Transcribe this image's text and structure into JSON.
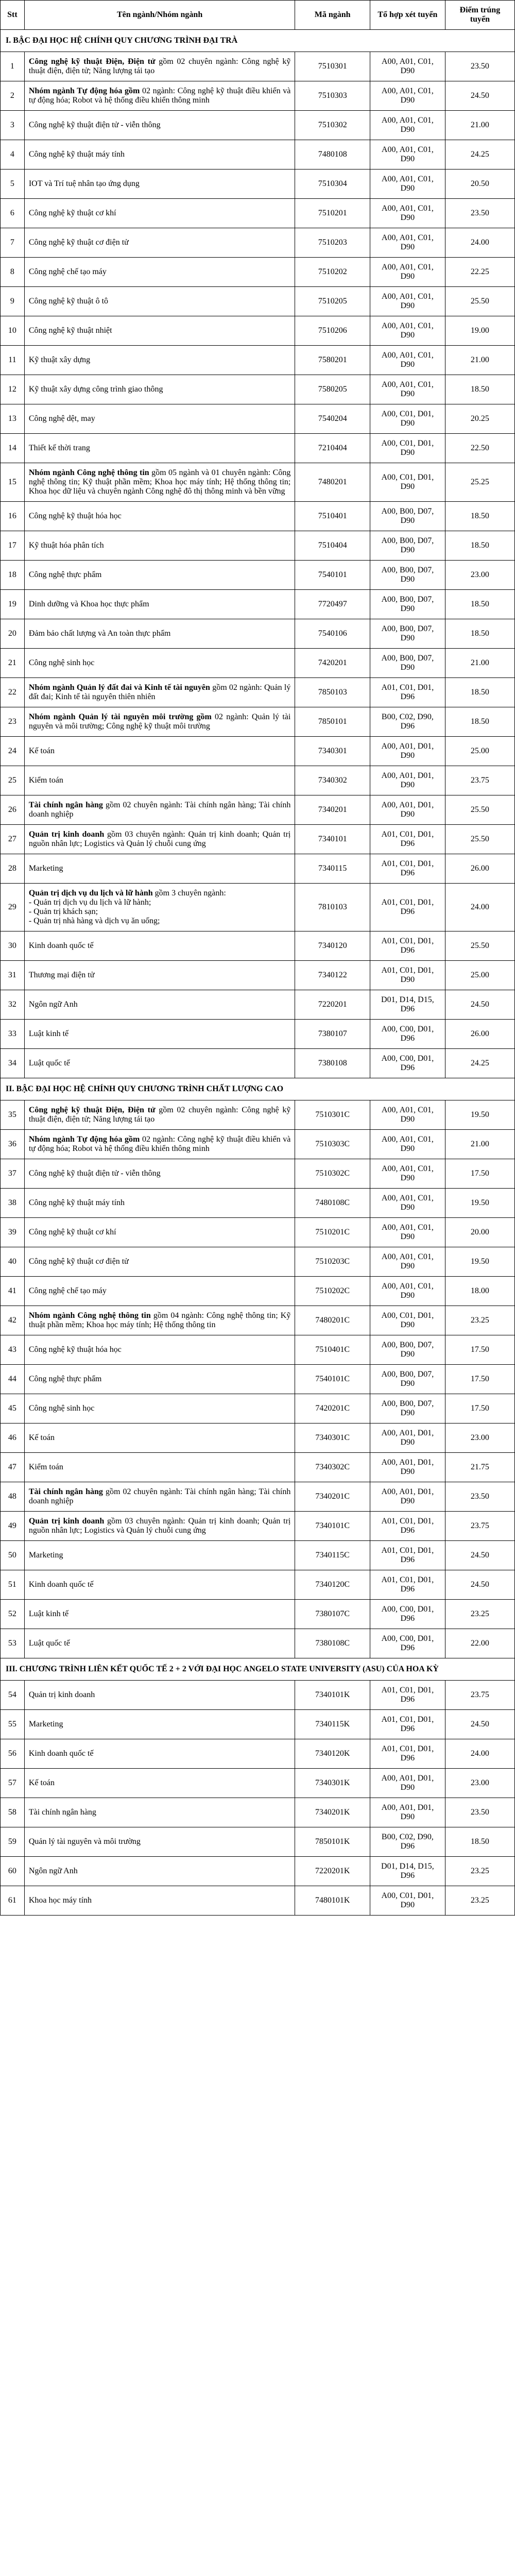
{
  "headers": {
    "stt": "Stt",
    "name": "Tên ngành/Nhóm ngành",
    "ma": "Mã ngành",
    "tohop": "Tổ hợp xét tuyển",
    "diem": "Điểm trúng tuyển"
  },
  "sections": [
    {
      "title": "I. BẬC ĐẠI HỌC HỆ CHÍNH QUY CHƯƠNG TRÌNH ĐẠI TRÀ"
    },
    {
      "title": "II. BẬC ĐẠI HỌC HỆ CHÍNH QUY CHƯƠNG TRÌNH CHẤT LƯỢNG CAO"
    },
    {
      "title": "III. CHƯƠNG TRÌNH LIÊN KẾT QUỐC TẾ 2 + 2 VỚI ĐẠI HỌC ANGELO STATE UNIVERSITY (ASU) CỦA HOA KỲ"
    }
  ],
  "rows1": [
    {
      "stt": "1",
      "bold": "Công nghệ kỹ thuật Điện, Điện tử",
      "plain": " gồm 02 chuyên ngành: Công nghệ kỹ thuật điện, điện tử; Năng lượng tái tạo",
      "ma": "7510301",
      "tohop": "A00, A01, C01, D90",
      "diem": "23.50"
    },
    {
      "stt": "2",
      "bold": "Nhóm ngành Tự động hóa gồm",
      "plain": " 02 ngành: Công nghệ kỹ thuật điều khiển và tự động hóa; Robot và hệ thống điều khiển thông minh",
      "ma": "7510303",
      "tohop": "A00, A01, C01, D90",
      "diem": "24.50"
    },
    {
      "stt": "3",
      "bold": "",
      "plain": "Công nghệ kỹ thuật điện tử - viễn thông",
      "ma": "7510302",
      "tohop": "A00, A01, C01, D90",
      "diem": "21.00"
    },
    {
      "stt": "4",
      "bold": "",
      "plain": "Công nghệ kỹ thuật máy tính",
      "ma": "7480108",
      "tohop": "A00, A01, C01, D90",
      "diem": "24.25"
    },
    {
      "stt": "5",
      "bold": "",
      "plain": "IOT và Trí tuệ nhân tạo ứng dụng",
      "ma": "7510304",
      "tohop": "A00, A01, C01, D90",
      "diem": "20.50"
    },
    {
      "stt": "6",
      "bold": "",
      "plain": "Công nghệ kỹ thuật cơ khí",
      "ma": "7510201",
      "tohop": "A00, A01, C01, D90",
      "diem": "23.50"
    },
    {
      "stt": "7",
      "bold": "",
      "plain": "Công nghệ kỹ thuật cơ điện tử",
      "ma": "7510203",
      "tohop": "A00, A01, C01, D90",
      "diem": "24.00"
    },
    {
      "stt": "8",
      "bold": "",
      "plain": "Công nghệ chế tạo máy",
      "ma": "7510202",
      "tohop": "A00, A01, C01, D90",
      "diem": "22.25"
    },
    {
      "stt": "9",
      "bold": "",
      "plain": "Công nghệ kỹ thuật ô tô",
      "ma": "7510205",
      "tohop": "A00, A01, C01, D90",
      "diem": "25.50"
    },
    {
      "stt": "10",
      "bold": "",
      "plain": "Công nghệ kỹ thuật nhiệt",
      "ma": "7510206",
      "tohop": "A00, A01, C01, D90",
      "diem": "19.00"
    },
    {
      "stt": "11",
      "bold": "",
      "plain": "Kỹ thuật xây dựng",
      "ma": "7580201",
      "tohop": "A00, A01, C01, D90",
      "diem": "21.00"
    },
    {
      "stt": "12",
      "bold": "",
      "plain": "Kỹ thuật xây dựng công trình giao thông",
      "ma": "7580205",
      "tohop": "A00, A01, C01, D90",
      "diem": "18.50"
    },
    {
      "stt": "13",
      "bold": "",
      "plain": "Công nghệ dệt, may",
      "ma": "7540204",
      "tohop": "A00, C01, D01, D90",
      "diem": "20.25"
    },
    {
      "stt": "14",
      "bold": "",
      "plain": "Thiết kế thời trang",
      "ma": "7210404",
      "tohop": "A00, C01, D01, D90",
      "diem": "22.50"
    },
    {
      "stt": "15",
      "bold": "Nhóm ngành Công nghệ thông tin",
      "plain": " gồm 05 ngành và 01 chuyên ngành: Công nghệ thông tin; Kỹ thuật phần mềm; Khoa học máy tính; Hệ thống thông tin; Khoa học dữ liệu và chuyên ngành Công nghệ đô thị thông minh và bền vững",
      "ma": "7480201",
      "tohop": "A00, C01, D01, D90",
      "diem": "25.25"
    },
    {
      "stt": "16",
      "bold": "",
      "plain": "Công nghệ kỹ thuật hóa học",
      "ma": "7510401",
      "tohop": "A00, B00, D07, D90",
      "diem": "18.50"
    },
    {
      "stt": "17",
      "bold": "",
      "plain": "Kỹ thuật hóa phân tích",
      "ma": "7510404",
      "tohop": "A00, B00, D07, D90",
      "diem": "18.50"
    },
    {
      "stt": "18",
      "bold": "",
      "plain": "Công nghệ thực phẩm",
      "ma": "7540101",
      "tohop": "A00, B00, D07, D90",
      "diem": "23.00"
    },
    {
      "stt": "19",
      "bold": "",
      "plain": "Dinh dưỡng và Khoa học thực phẩm",
      "ma": "7720497",
      "tohop": "A00, B00, D07, D90",
      "diem": "18.50"
    },
    {
      "stt": "20",
      "bold": "",
      "plain": "Đảm bảo chất lượng và An toàn thực phẩm",
      "ma": "7540106",
      "tohop": "A00, B00, D07, D90",
      "diem": "18.50"
    },
    {
      "stt": "21",
      "bold": "",
      "plain": "Công nghệ sinh học",
      "ma": "7420201",
      "tohop": "A00, B00, D07, D90",
      "diem": "21.00"
    },
    {
      "stt": "22",
      "bold": "Nhóm ngành Quản lý đất đai và Kinh tế tài nguyên",
      "plain": " gồm 02 ngành: Quản lý đất đai; Kinh tế tài nguyên thiên nhiên",
      "ma": "7850103",
      "tohop": "A01, C01, D01, D96",
      "diem": "18.50"
    },
    {
      "stt": "23",
      "bold": "Nhóm ngành Quản lý tài nguyên môi trường gồm",
      "plain": " 02 ngành: Quản lý tài nguyên và môi trường; Công nghệ kỹ thuật môi trường",
      "ma": "7850101",
      "tohop": "B00, C02, D90, D96",
      "diem": "18.50"
    },
    {
      "stt": "24",
      "bold": "",
      "plain": "Kế toán",
      "ma": "7340301",
      "tohop": "A00, A01, D01, D90",
      "diem": "25.00"
    },
    {
      "stt": "25",
      "bold": "",
      "plain": "Kiểm toán",
      "ma": "7340302",
      "tohop": "A00, A01, D01, D90",
      "diem": "23.75"
    },
    {
      "stt": "26",
      "bold": "Tài chính ngân hàng",
      "plain": " gồm 02 chuyên ngành: Tài chính ngân hàng; Tài chính doanh nghiệp",
      "ma": "7340201",
      "tohop": "A00, A01, D01, D90",
      "diem": "25.50"
    },
    {
      "stt": "27",
      "bold": "Quản trị kinh doanh",
      "plain": " gồm 03 chuyên ngành: Quản trị kinh doanh; Quản trị nguồn nhân lực; Logistics và Quản lý chuỗi cung ứng",
      "ma": "7340101",
      "tohop": "A01, C01, D01, D96",
      "diem": "25.50"
    },
    {
      "stt": "28",
      "bold": "",
      "plain": "Marketing",
      "ma": "7340115",
      "tohop": "A01, C01, D01, D96",
      "diem": "26.00"
    },
    {
      "stt": "29",
      "bold": "Quản trị dịch vụ du lịch và lữ hành",
      "plain": " gồm 3 chuyên ngành:\n- Quản trị dịch vụ du lịch và lữ hành;\n- Quản trị khách sạn;\n- Quản trị nhà hàng và dịch vụ ăn uống;",
      "ma": "7810103",
      "tohop": "A01, C01, D01, D96",
      "diem": "24.00"
    },
    {
      "stt": "30",
      "bold": "",
      "plain": "Kinh doanh quốc tế",
      "ma": "7340120",
      "tohop": "A01, C01, D01, D96",
      "diem": "25.50"
    },
    {
      "stt": "31",
      "bold": "",
      "plain": "Thương mại điện tử",
      "ma": "7340122",
      "tohop": "A01, C01, D01, D90",
      "diem": "25.00"
    },
    {
      "stt": "32",
      "bold": "",
      "plain": "Ngôn ngữ Anh",
      "ma": "7220201",
      "tohop": "D01, D14, D15, D96",
      "diem": "24.50"
    },
    {
      "stt": "33",
      "bold": "",
      "plain": "Luật kinh tế",
      "ma": "7380107",
      "tohop": "A00, C00, D01, D96",
      "diem": "26.00"
    },
    {
      "stt": "34",
      "bold": "",
      "plain": "Luật quốc tế",
      "ma": "7380108",
      "tohop": "A00, C00, D01, D96",
      "diem": "24.25"
    }
  ],
  "rows2": [
    {
      "stt": "35",
      "bold": "Công nghệ kỹ thuật Điện, Điện tử",
      "plain": " gồm 02 chuyên ngành: Công nghệ kỹ thuật điện, điện tử; Năng lượng tái tạo",
      "ma": "7510301C",
      "tohop": "A00, A01, C01, D90",
      "diem": "19.50"
    },
    {
      "stt": "36",
      "bold": "Nhóm ngành Tự động hóa gồm",
      "plain": " 02 ngành: Công nghệ kỹ thuật điều khiển và tự động hóa; Robot và hệ thống điều khiển thông minh",
      "ma": "7510303C",
      "tohop": "A00, A01, C01, D90",
      "diem": "21.00"
    },
    {
      "stt": "37",
      "bold": "",
      "plain": "Công nghệ kỹ thuật điện tử - viễn thông",
      "ma": "7510302C",
      "tohop": "A00, A01, C01, D90",
      "diem": "17.50"
    },
    {
      "stt": "38",
      "bold": "",
      "plain": "Công nghệ kỹ thuật máy tính",
      "ma": "7480108C",
      "tohop": "A00, A01, C01, D90",
      "diem": "19.50"
    },
    {
      "stt": "39",
      "bold": "",
      "plain": "Công nghệ kỹ thuật cơ khí",
      "ma": "7510201C",
      "tohop": "A00, A01, C01, D90",
      "diem": "20.00"
    },
    {
      "stt": "40",
      "bold": "",
      "plain": "Công nghệ kỹ thuật cơ điện tử",
      "ma": "7510203C",
      "tohop": "A00, A01, C01, D90",
      "diem": "19.50"
    },
    {
      "stt": "41",
      "bold": "",
      "plain": "Công nghệ chế tạo máy",
      "ma": "7510202C",
      "tohop": "A00, A01, C01, D90",
      "diem": "18.00"
    },
    {
      "stt": "42",
      "bold": "Nhóm ngành Công nghệ thông tin",
      "plain": " gồm 04 ngành: Công nghệ thông tin; Kỹ thuật phần mềm; Khoa học máy tính; Hệ thống thông tin",
      "ma": "7480201C",
      "tohop": "A00, C01, D01, D90",
      "diem": "23.25"
    },
    {
      "stt": "43",
      "bold": "",
      "plain": "Công nghệ kỹ thuật hóa học",
      "ma": "7510401C",
      "tohop": "A00, B00, D07, D90",
      "diem": "17.50"
    },
    {
      "stt": "44",
      "bold": "",
      "plain": "Công nghệ thực phẩm",
      "ma": "7540101C",
      "tohop": "A00, B00, D07, D90",
      "diem": "17.50"
    },
    {
      "stt": "45",
      "bold": "",
      "plain": "Công nghệ sinh học",
      "ma": "7420201C",
      "tohop": "A00, B00, D07, D90",
      "diem": "17.50"
    },
    {
      "stt": "46",
      "bold": "",
      "plain": "Kế toán",
      "ma": "7340301C",
      "tohop": "A00, A01, D01, D90",
      "diem": "23.00"
    },
    {
      "stt": "47",
      "bold": "",
      "plain": "Kiểm toán",
      "ma": "7340302C",
      "tohop": "A00, A01, D01, D90",
      "diem": "21.75"
    },
    {
      "stt": "48",
      "bold": "Tài chính ngân hàng",
      "plain": " gồm 02 chuyên ngành: Tài chính ngân hàng; Tài chính doanh nghiệp",
      "ma": "7340201C",
      "tohop": "A00, A01, D01, D90",
      "diem": "23.50"
    },
    {
      "stt": "49",
      "bold": "Quản trị kinh doanh",
      "plain": " gồm 03 chuyên ngành: Quản trị kinh doanh; Quản trị nguồn nhân lực; Logistics và Quản lý chuỗi cung ứng",
      "ma": "7340101C",
      "tohop": "A01, C01, D01, D96",
      "diem": "23.75"
    },
    {
      "stt": "50",
      "bold": "",
      "plain": "Marketing",
      "ma": "7340115C",
      "tohop": "A01, C01, D01, D96",
      "diem": "24.50"
    },
    {
      "stt": "51",
      "bold": "",
      "plain": "Kinh doanh quốc tế",
      "ma": "7340120C",
      "tohop": "A01, C01, D01, D96",
      "diem": "24.50"
    },
    {
      "stt": "52",
      "bold": "",
      "plain": "Luật kinh tế",
      "ma": "7380107C",
      "tohop": "A00, C00, D01, D96",
      "diem": "23.25"
    },
    {
      "stt": "53",
      "bold": "",
      "plain": "Luật quốc tế",
      "ma": "7380108C",
      "tohop": "A00, C00, D01, D96",
      "diem": "22.00"
    }
  ],
  "rows3": [
    {
      "stt": "54",
      "bold": "",
      "plain": "Quản trị kinh doanh",
      "ma": "7340101K",
      "tohop": "A01, C01, D01, D96",
      "diem": "23.75"
    },
    {
      "stt": "55",
      "bold": "",
      "plain": "Marketing",
      "ma": "7340115K",
      "tohop": "A01, C01, D01, D96",
      "diem": "24.50"
    },
    {
      "stt": "56",
      "bold": "",
      "plain": "Kinh doanh quốc tế",
      "ma": "7340120K",
      "tohop": "A01, C01, D01, D96",
      "diem": "24.00"
    },
    {
      "stt": "57",
      "bold": "",
      "plain": "Kế toán",
      "ma": "7340301K",
      "tohop": "A00, A01, D01, D90",
      "diem": "23.00"
    },
    {
      "stt": "58",
      "bold": "",
      "plain": "Tài chính ngân hàng",
      "ma": "7340201K",
      "tohop": "A00, A01, D01, D90",
      "diem": "23.50"
    },
    {
      "stt": "59",
      "bold": "",
      "plain": "Quản lý tài nguyên và môi trường",
      "ma": "7850101K",
      "tohop": "B00, C02, D90, D96",
      "diem": "18.50"
    },
    {
      "stt": "60",
      "bold": "",
      "plain": "Ngôn ngữ Anh",
      "ma": "7220201K",
      "tohop": "D01, D14, D15, D96",
      "diem": "23.25"
    },
    {
      "stt": "61",
      "bold": "",
      "plain": "Khoa học máy tính",
      "ma": "7480101K",
      "tohop": "A00, C01, D01, D90",
      "diem": "23.25"
    }
  ]
}
